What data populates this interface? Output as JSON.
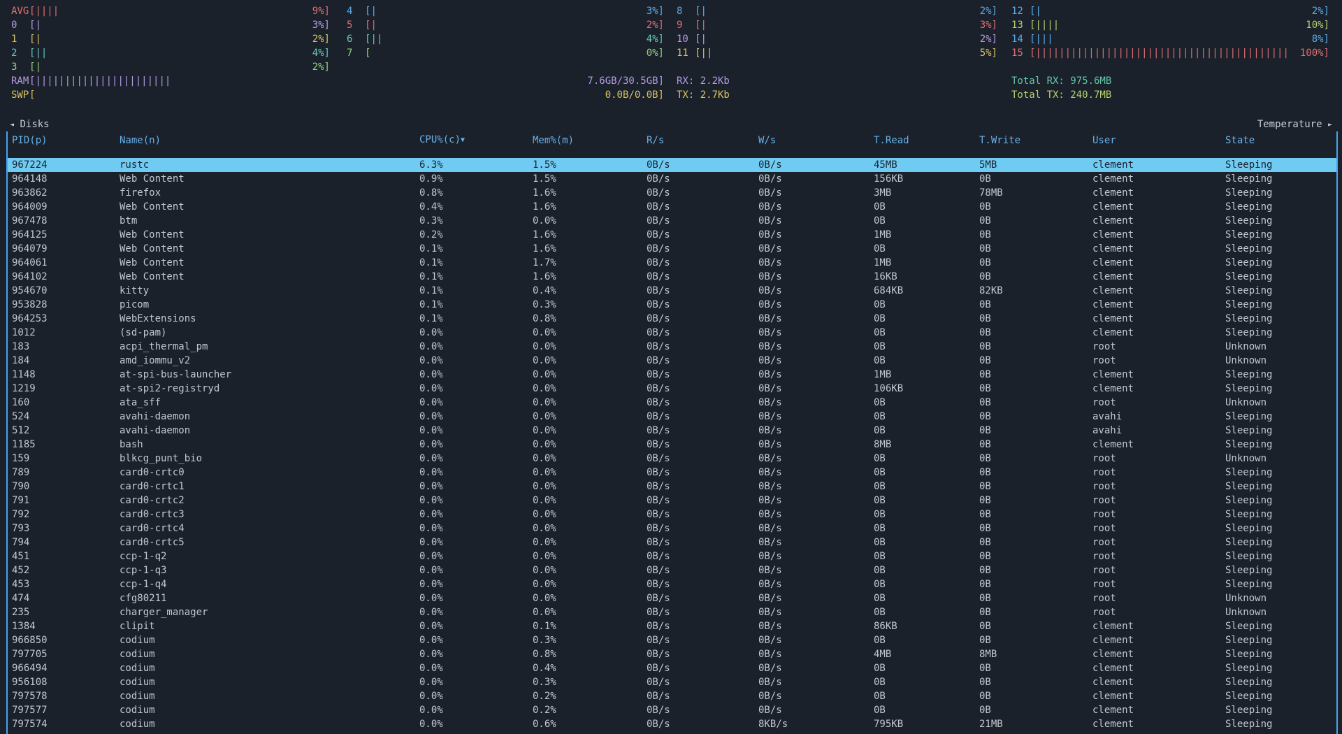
{
  "gauge": {
    "open": "[",
    "close": "]",
    "bar_char": "|"
  },
  "cpu": {
    "columns": [
      [
        {
          "label": "AVG",
          "pct": "9%",
          "bars": 4,
          "color": "red"
        },
        {
          "label": "0",
          "pct": "3%",
          "bars": 1,
          "color": "magenta"
        },
        {
          "label": "1",
          "pct": "2%",
          "bars": 1,
          "color": "yellow"
        },
        {
          "label": "2",
          "pct": "4%",
          "bars": 2,
          "color": "cyan"
        },
        {
          "label": "3",
          "pct": "2%",
          "bars": 1,
          "color": "green"
        }
      ],
      [
        {
          "label": "4",
          "pct": "3%",
          "bars": 1,
          "color": "blue"
        },
        {
          "label": "5",
          "pct": "2%",
          "bars": 1,
          "color": "red"
        },
        {
          "label": "6",
          "pct": "4%",
          "bars": 2,
          "color": "cyan"
        },
        {
          "label": "7",
          "pct": "0%",
          "bars": 0,
          "color": "green"
        }
      ],
      [
        {
          "label": "8",
          "pct": "2%",
          "bars": 1,
          "color": "blue"
        },
        {
          "label": "9",
          "pct": "3%",
          "bars": 1,
          "color": "red"
        },
        {
          "label": "10",
          "pct": "2%",
          "bars": 1,
          "color": "magenta"
        },
        {
          "label": "11",
          "pct": "5%",
          "bars": 2,
          "color": "yellow"
        }
      ],
      [
        {
          "label": "12",
          "pct": "2%",
          "bars": 1,
          "color": "blue"
        },
        {
          "label": "13",
          "pct": "10%",
          "bars": 4,
          "color": "lime"
        },
        {
          "label": "14",
          "pct": "8%",
          "bars": 3,
          "color": "blue"
        },
        {
          "label": "15",
          "pct": "100%",
          "bars": 43,
          "color": "red"
        }
      ]
    ]
  },
  "memory": {
    "ram": {
      "label": "RAM",
      "value": "7.6GB/30.5GB",
      "bars": 23,
      "color": "magenta"
    },
    "swp": {
      "label": "SWP",
      "value": "0.0B/0.0B",
      "bars": 0,
      "color": "yellow"
    }
  },
  "network": {
    "rx": {
      "text": "RX: 2.2Kb",
      "color": "magenta"
    },
    "tx": {
      "text": "TX: 2.7Kb",
      "color": "yellow"
    },
    "total_rx": {
      "text": "Total RX: 975.6MB",
      "color": "teal"
    },
    "total_tx": {
      "text": "Total TX: 240.7MB",
      "color": "lime"
    }
  },
  "nav": {
    "left_arrow": "◄",
    "left_label": "Disks",
    "right_label": "Temperature",
    "right_arrow": "►"
  },
  "process_table": {
    "headers": [
      "PID(p)",
      "Name(n)",
      "CPU%(c)▼",
      "Mem%(m)",
      "R/s",
      "W/s",
      "T.Read",
      "T.Write",
      "User",
      "State"
    ],
    "selected_index": 0,
    "rows": [
      [
        "967224",
        "rustc",
        "6.3%",
        "1.5%",
        "0B/s",
        "0B/s",
        "45MB",
        "5MB",
        "clement",
        "Sleeping"
      ],
      [
        "964148",
        "Web Content",
        "0.9%",
        "1.5%",
        "0B/s",
        "0B/s",
        "156KB",
        "0B",
        "clement",
        "Sleeping"
      ],
      [
        "963862",
        "firefox",
        "0.8%",
        "1.6%",
        "0B/s",
        "0B/s",
        "3MB",
        "78MB",
        "clement",
        "Sleeping"
      ],
      [
        "964009",
        "Web Content",
        "0.4%",
        "1.6%",
        "0B/s",
        "0B/s",
        "0B",
        "0B",
        "clement",
        "Sleeping"
      ],
      [
        "967478",
        "btm",
        "0.3%",
        "0.0%",
        "0B/s",
        "0B/s",
        "0B",
        "0B",
        "clement",
        "Sleeping"
      ],
      [
        "964125",
        "Web Content",
        "0.2%",
        "1.6%",
        "0B/s",
        "0B/s",
        "1MB",
        "0B",
        "clement",
        "Sleeping"
      ],
      [
        "964079",
        "Web Content",
        "0.1%",
        "1.6%",
        "0B/s",
        "0B/s",
        "0B",
        "0B",
        "clement",
        "Sleeping"
      ],
      [
        "964061",
        "Web Content",
        "0.1%",
        "1.7%",
        "0B/s",
        "0B/s",
        "1MB",
        "0B",
        "clement",
        "Sleeping"
      ],
      [
        "964102",
        "Web Content",
        "0.1%",
        "1.6%",
        "0B/s",
        "0B/s",
        "16KB",
        "0B",
        "clement",
        "Sleeping"
      ],
      [
        "954670",
        "kitty",
        "0.1%",
        "0.4%",
        "0B/s",
        "0B/s",
        "684KB",
        "82KB",
        "clement",
        "Sleeping"
      ],
      [
        "953828",
        "picom",
        "0.1%",
        "0.3%",
        "0B/s",
        "0B/s",
        "0B",
        "0B",
        "clement",
        "Sleeping"
      ],
      [
        "964253",
        "WebExtensions",
        "0.1%",
        "0.8%",
        "0B/s",
        "0B/s",
        "0B",
        "0B",
        "clement",
        "Sleeping"
      ],
      [
        "1012",
        "(sd-pam)",
        "0.0%",
        "0.0%",
        "0B/s",
        "0B/s",
        "0B",
        "0B",
        "clement",
        "Sleeping"
      ],
      [
        "183",
        "acpi_thermal_pm",
        "0.0%",
        "0.0%",
        "0B/s",
        "0B/s",
        "0B",
        "0B",
        "root",
        "Unknown"
      ],
      [
        "184",
        "amd_iommu_v2",
        "0.0%",
        "0.0%",
        "0B/s",
        "0B/s",
        "0B",
        "0B",
        "root",
        "Unknown"
      ],
      [
        "1148",
        "at-spi-bus-launcher",
        "0.0%",
        "0.0%",
        "0B/s",
        "0B/s",
        "1MB",
        "0B",
        "clement",
        "Sleeping"
      ],
      [
        "1219",
        "at-spi2-registryd",
        "0.0%",
        "0.0%",
        "0B/s",
        "0B/s",
        "106KB",
        "0B",
        "clement",
        "Sleeping"
      ],
      [
        "160",
        "ata_sff",
        "0.0%",
        "0.0%",
        "0B/s",
        "0B/s",
        "0B",
        "0B",
        "root",
        "Unknown"
      ],
      [
        "524",
        "avahi-daemon",
        "0.0%",
        "0.0%",
        "0B/s",
        "0B/s",
        "0B",
        "0B",
        "avahi",
        "Sleeping"
      ],
      [
        "512",
        "avahi-daemon",
        "0.0%",
        "0.0%",
        "0B/s",
        "0B/s",
        "0B",
        "0B",
        "avahi",
        "Sleeping"
      ],
      [
        "1185",
        "bash",
        "0.0%",
        "0.0%",
        "0B/s",
        "0B/s",
        "8MB",
        "0B",
        "clement",
        "Sleeping"
      ],
      [
        "159",
        "blkcg_punt_bio",
        "0.0%",
        "0.0%",
        "0B/s",
        "0B/s",
        "0B",
        "0B",
        "root",
        "Unknown"
      ],
      [
        "789",
        "card0-crtc0",
        "0.0%",
        "0.0%",
        "0B/s",
        "0B/s",
        "0B",
        "0B",
        "root",
        "Sleeping"
      ],
      [
        "790",
        "card0-crtc1",
        "0.0%",
        "0.0%",
        "0B/s",
        "0B/s",
        "0B",
        "0B",
        "root",
        "Sleeping"
      ],
      [
        "791",
        "card0-crtc2",
        "0.0%",
        "0.0%",
        "0B/s",
        "0B/s",
        "0B",
        "0B",
        "root",
        "Sleeping"
      ],
      [
        "792",
        "card0-crtc3",
        "0.0%",
        "0.0%",
        "0B/s",
        "0B/s",
        "0B",
        "0B",
        "root",
        "Sleeping"
      ],
      [
        "793",
        "card0-crtc4",
        "0.0%",
        "0.0%",
        "0B/s",
        "0B/s",
        "0B",
        "0B",
        "root",
        "Sleeping"
      ],
      [
        "794",
        "card0-crtc5",
        "0.0%",
        "0.0%",
        "0B/s",
        "0B/s",
        "0B",
        "0B",
        "root",
        "Sleeping"
      ],
      [
        "451",
        "ccp-1-q2",
        "0.0%",
        "0.0%",
        "0B/s",
        "0B/s",
        "0B",
        "0B",
        "root",
        "Sleeping"
      ],
      [
        "452",
        "ccp-1-q3",
        "0.0%",
        "0.0%",
        "0B/s",
        "0B/s",
        "0B",
        "0B",
        "root",
        "Sleeping"
      ],
      [
        "453",
        "ccp-1-q4",
        "0.0%",
        "0.0%",
        "0B/s",
        "0B/s",
        "0B",
        "0B",
        "root",
        "Sleeping"
      ],
      [
        "474",
        "cfg80211",
        "0.0%",
        "0.0%",
        "0B/s",
        "0B/s",
        "0B",
        "0B",
        "root",
        "Unknown"
      ],
      [
        "235",
        "charger_manager",
        "0.0%",
        "0.0%",
        "0B/s",
        "0B/s",
        "0B",
        "0B",
        "root",
        "Unknown"
      ],
      [
        "1384",
        "clipit",
        "0.0%",
        "0.1%",
        "0B/s",
        "0B/s",
        "86KB",
        "0B",
        "clement",
        "Sleeping"
      ],
      [
        "966850",
        "codium",
        "0.0%",
        "0.3%",
        "0B/s",
        "0B/s",
        "0B",
        "0B",
        "clement",
        "Sleeping"
      ],
      [
        "797705",
        "codium",
        "0.0%",
        "0.8%",
        "0B/s",
        "0B/s",
        "4MB",
        "8MB",
        "clement",
        "Sleeping"
      ],
      [
        "966494",
        "codium",
        "0.0%",
        "0.4%",
        "0B/s",
        "0B/s",
        "0B",
        "0B",
        "clement",
        "Sleeping"
      ],
      [
        "956108",
        "codium",
        "0.0%",
        "0.3%",
        "0B/s",
        "0B/s",
        "0B",
        "0B",
        "clement",
        "Sleeping"
      ],
      [
        "797578",
        "codium",
        "0.0%",
        "0.2%",
        "0B/s",
        "0B/s",
        "0B",
        "0B",
        "clement",
        "Sleeping"
      ],
      [
        "797577",
        "codium",
        "0.0%",
        "0.2%",
        "0B/s",
        "0B/s",
        "0B",
        "0B",
        "clement",
        "Sleeping"
      ],
      [
        "797574",
        "codium",
        "0.0%",
        "0.6%",
        "0B/s",
        "8KB/s",
        "795KB",
        "21MB",
        "clement",
        "Sleeping"
      ]
    ]
  },
  "colors": {
    "background": "#1b212b",
    "foreground": "#c2c7d0",
    "table_header": "#67b0e8",
    "panel_border": "#46a4f0",
    "selected_row_bg": "#70cbf2",
    "selected_row_fg": "#1b212b",
    "nav_text": "#c8cdd5",
    "red": "#de6e70",
    "magenta": "#b49ae4",
    "yellow": "#d8c25f",
    "cyan": "#65c5ba",
    "green": "#97ce7c",
    "blue": "#58aae8",
    "lime": "#b4cf6e",
    "teal": "#62c5a4"
  }
}
